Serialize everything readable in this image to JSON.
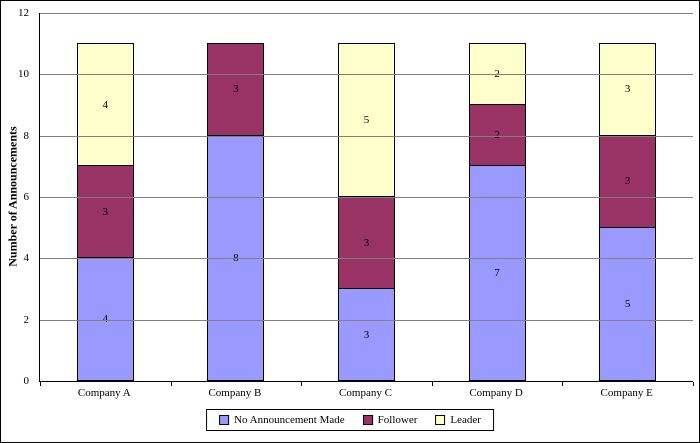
{
  "chart_data": {
    "type": "bar",
    "stacked": true,
    "title": "",
    "xlabel": "",
    "ylabel": "Number of Announcements",
    "ylim": [
      0,
      12
    ],
    "ytick_step": 2,
    "grid": true,
    "legend_position": "bottom",
    "categories": [
      "Company A",
      "Company B",
      "Company C",
      "Company D",
      "Company E"
    ],
    "series": [
      {
        "name": "No Announcement Made",
        "color": "#9999FF",
        "values": [
          4,
          8,
          3,
          7,
          5
        ]
      },
      {
        "name": "Follower",
        "color": "#993366",
        "values": [
          3,
          3,
          3,
          2,
          3
        ]
      },
      {
        "name": "Leader",
        "color": "#FFFFCC",
        "values": [
          4,
          0,
          5,
          2,
          3
        ]
      }
    ]
  }
}
